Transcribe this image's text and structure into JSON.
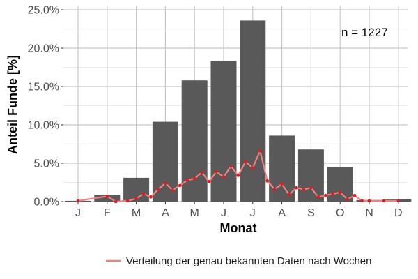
{
  "chart_data": {
    "type": "bar",
    "categories": [
      "J",
      "F",
      "M",
      "A",
      "M",
      "J",
      "J",
      "A",
      "S",
      "O",
      "N",
      "D"
    ],
    "values": [
      0.1,
      0.9,
      3.1,
      10.4,
      15.8,
      18.3,
      23.6,
      8.6,
      6.8,
      4.5,
      0.2,
      0.3
    ],
    "ylim": [
      0,
      25
    ],
    "y_ticks": [
      0,
      5,
      10,
      15,
      20,
      25
    ],
    "y_tick_labels": [
      "0.0%",
      "5.0%",
      "10.0%",
      "15.0%",
      "20.0%",
      "25.0%"
    ],
    "xlabel": "Monat",
    "ylabel": "Anteil Funde [%]",
    "annotation": "n = 1227",
    "grid": true,
    "legend_position": "bottom",
    "colors": {
      "bars": "#595959",
      "line": "#f08080",
      "points": "#e31a1c",
      "grid": "#c8c8c8"
    },
    "line_series": {
      "name": "Verteilung der genau bekannten Daten nach Wochen",
      "x_month": [
        0.0,
        1.0,
        1.3,
        1.7,
        2.0,
        2.25,
        2.5,
        2.75,
        3.0,
        3.25,
        3.5,
        3.75,
        4.0,
        4.25,
        4.5,
        4.75,
        5.0,
        5.25,
        5.5,
        5.75,
        6.0,
        6.25,
        6.5,
        6.75,
        7.0,
        7.25,
        7.5,
        7.75,
        8.0,
        8.25,
        8.5,
        8.75,
        9.0,
        9.25,
        9.5,
        9.75,
        10.0,
        10.5,
        11.0
      ],
      "values": [
        0.1,
        0.7,
        0.0,
        0.1,
        0.4,
        1.0,
        0.6,
        1.6,
        2.4,
        1.5,
        2.1,
        2.8,
        3.0,
        3.8,
        2.6,
        3.9,
        3.2,
        4.6,
        3.4,
        5.2,
        4.4,
        6.6,
        2.7,
        1.6,
        2.3,
        0.9,
        1.8,
        1.6,
        1.8,
        0.6,
        0.8,
        1.0,
        1.2,
        0.3,
        0.8,
        0.1,
        0.1,
        0.1,
        0.1
      ]
    }
  }
}
